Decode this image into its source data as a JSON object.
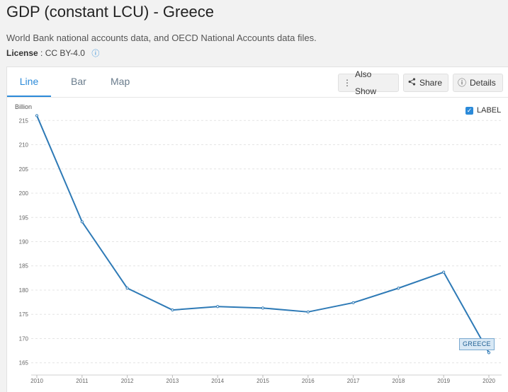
{
  "header": {
    "title": "GDP (constant LCU) - Greece",
    "source": "World Bank national accounts data, and OECD National Accounts data files.",
    "license_label": "License",
    "license_value": ": CC BY-4.0"
  },
  "tabs": [
    {
      "label": "Line"
    },
    {
      "label": "Bar"
    },
    {
      "label": "Map"
    }
  ],
  "toolbar": {
    "also_show_label": "Also Show",
    "share_label": "Share",
    "details_label": "Details"
  },
  "label_toggle": {
    "text": "LABEL",
    "checked": true
  },
  "colors": {
    "accent": "#2b8ad9",
    "series": "#2e7ab6"
  },
  "chart_data": {
    "type": "line",
    "ylabel": "Billion",
    "x": [
      2010,
      2011,
      2012,
      2013,
      2014,
      2015,
      2016,
      2017,
      2018,
      2019,
      2020
    ],
    "series": [
      {
        "name": "GREECE",
        "values": [
          216.0,
          194.1,
          180.4,
          175.9,
          176.6,
          176.3,
          175.5,
          177.4,
          180.4,
          183.7,
          167.1
        ]
      }
    ],
    "yticks": [
      165,
      170,
      175,
      180,
      185,
      190,
      195,
      200,
      205,
      210,
      215
    ],
    "ylim": [
      163.5,
      216.5
    ],
    "legend": "end-of-line label"
  }
}
